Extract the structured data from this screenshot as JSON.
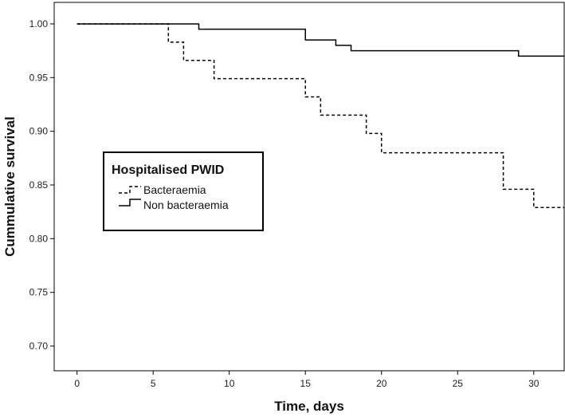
{
  "chart_data": {
    "type": "line",
    "subtype": "kaplan-meier step",
    "xlabel": "Time, days",
    "ylabel": "Cummulative survival",
    "xlim": [
      -1.5,
      32
    ],
    "ylim": [
      0.677,
      1.02
    ],
    "x_ticks": [
      0,
      5,
      10,
      15,
      20,
      25,
      30
    ],
    "y_ticks": [
      0.7,
      0.75,
      0.8,
      0.85,
      0.9,
      0.95,
      1.0
    ],
    "y_tick_labels": [
      "0.70",
      "0.75",
      "0.80",
      "0.85",
      "0.90",
      "0.95",
      "1.00"
    ],
    "grid": false,
    "legend": {
      "title": "Hospitalised PWID",
      "placement": "center-left",
      "entries": [
        "Bacteraemia",
        "Non bacteraemia"
      ]
    },
    "series": [
      {
        "name": "Bacteraemia",
        "style": "dashed",
        "color": "#000000",
        "x": [
          0,
          6,
          7,
          9,
          15,
          16,
          19,
          20,
          28,
          30,
          32
        ],
        "y": [
          1.0,
          0.983,
          0.966,
          0.949,
          0.932,
          0.915,
          0.898,
          0.88,
          0.846,
          0.829,
          0.829
        ]
      },
      {
        "name": "Non bacteraemia",
        "style": "solid",
        "color": "#000000",
        "x": [
          0,
          8,
          15,
          17,
          18,
          29,
          32
        ],
        "y": [
          1.0,
          0.995,
          0.985,
          0.98,
          0.975,
          0.97,
          0.97
        ]
      }
    ]
  }
}
